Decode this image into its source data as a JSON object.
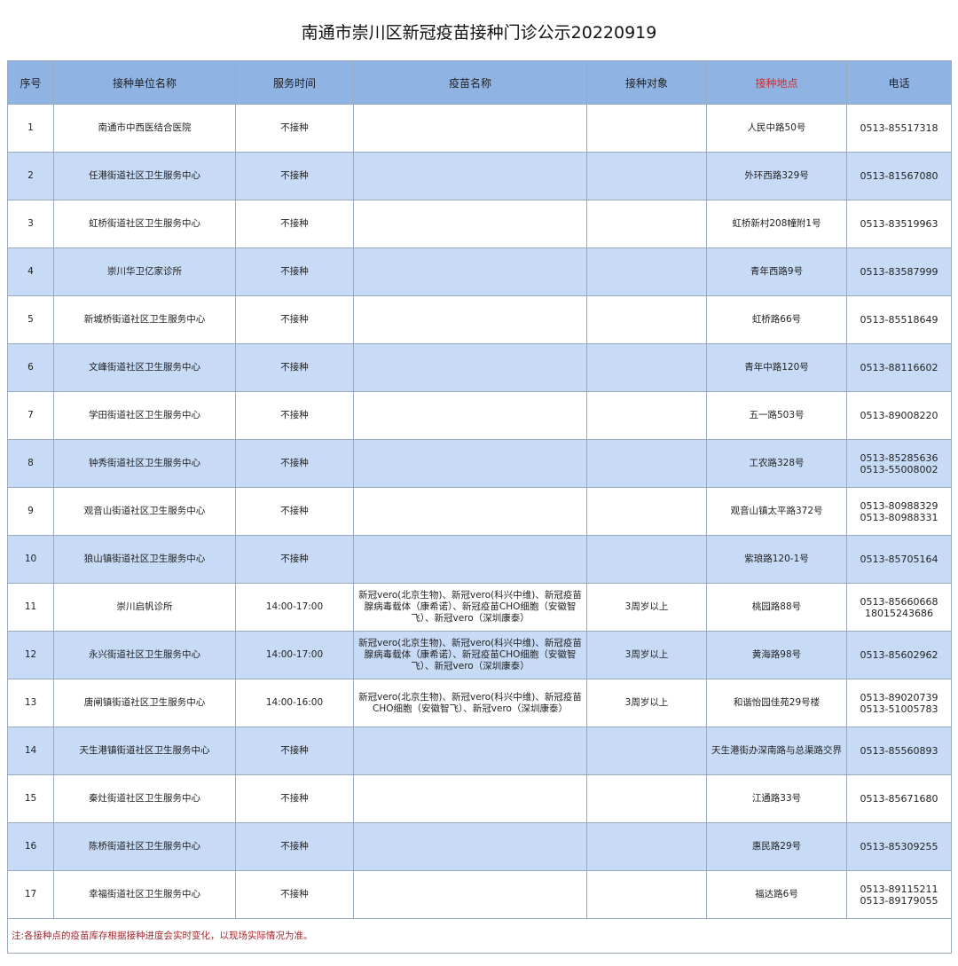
{
  "title": "南通市崇川区新冠疫苗接种门诊公示20220919",
  "headers": [
    "序号",
    "接种单位名称",
    "服务时间",
    "疫苗名称",
    "接种对象",
    "接种地点",
    "电话"
  ],
  "colors": {
    "header_bg": "#8fb3e2",
    "alt_row_bg": "#c7daf6",
    "location_header": "#d42a2a",
    "note": "#a3262e"
  },
  "rows": [
    {
      "no": "1",
      "unit": "南通市中西医结合医院",
      "time": "不接种",
      "vaccine": "",
      "target": "",
      "location": "人民中路50号",
      "phone": "0513-85517318"
    },
    {
      "no": "2",
      "unit": "任港街道社区卫生服务中心",
      "time": "不接种",
      "vaccine": "",
      "target": "",
      "location": "外环西路329号",
      "phone": "0513-81567080"
    },
    {
      "no": "3",
      "unit": "虹桥街道社区卫生服务中心",
      "time": "不接种",
      "vaccine": "",
      "target": "",
      "location": "虹桥新村208幢附1号",
      "phone": "0513-83519963"
    },
    {
      "no": "4",
      "unit": "崇川华卫亿家诊所",
      "time": "不接种",
      "vaccine": "",
      "target": "",
      "location": "青年西路9号",
      "phone": "0513-83587999"
    },
    {
      "no": "5",
      "unit": "新城桥街道社区卫生服务中心",
      "time": "不接种",
      "vaccine": "",
      "target": "",
      "location": "虹桥路66号",
      "phone": "0513-85518649"
    },
    {
      "no": "6",
      "unit": "文峰街道社区卫生服务中心",
      "time": "不接种",
      "vaccine": "",
      "target": "",
      "location": "青年中路120号",
      "phone": "0513-88116602"
    },
    {
      "no": "7",
      "unit": "学田街道社区卫生服务中心",
      "time": "不接种",
      "vaccine": "",
      "target": "",
      "location": "五一路503号",
      "phone": "0513-89008220"
    },
    {
      "no": "8",
      "unit": "钟秀街道社区卫生服务中心",
      "time": "不接种",
      "vaccine": "",
      "target": "",
      "location": "工农路328号",
      "phone": "0513-85285636\n0513-55008002"
    },
    {
      "no": "9",
      "unit": "观音山街道社区卫生服务中心",
      "time": "不接种",
      "vaccine": "",
      "target": "",
      "location": "观音山镇太平路372号",
      "phone": "0513-80988329\n0513-80988331"
    },
    {
      "no": "10",
      "unit": "狼山镇街道社区卫生服务中心",
      "time": "不接种",
      "vaccine": "",
      "target": "",
      "location": "紫琅路120-1号",
      "phone": "0513-85705164"
    },
    {
      "no": "11",
      "unit": "崇川启帆诊所",
      "time": "14:00-17:00",
      "vaccine": "新冠vero(北京生物)、新冠vero(科兴中维)、新冠疫苗腺病毒载体（康希诺）、新冠疫苗CHO细胞（安徽智飞）、新冠vero（深圳康泰）",
      "target": "3周岁以上",
      "location": "桃园路88号",
      "phone": "0513-85660668\n18015243686"
    },
    {
      "no": "12",
      "unit": "永兴街道社区卫生服务中心",
      "time": "14:00-17:00",
      "vaccine": "新冠vero(北京生物)、新冠vero(科兴中维)、新冠疫苗腺病毒载体（康希诺）、新冠疫苗CHO细胞（安徽智飞）、新冠vero（深圳康泰）",
      "target": "3周岁以上",
      "location": "黄海路98号",
      "phone": "0513-85602962"
    },
    {
      "no": "13",
      "unit": "唐闸镇街道社区卫生服务中心",
      "time": "14:00-16:00",
      "vaccine": "新冠vero(北京生物)、新冠vero(科兴中维)、新冠疫苗CHO细胞（安徽智飞）、新冠vero（深圳康泰）",
      "target": "3周岁以上",
      "location": "和谐怡园佳苑29号楼",
      "phone": "0513-89020739\n0513-51005783"
    },
    {
      "no": "14",
      "unit": "天生港镇街道社区卫生服务中心",
      "time": "不接种",
      "vaccine": "",
      "target": "",
      "location": "天生港街办深南路与总渠路交界",
      "phone": "0513-85560893"
    },
    {
      "no": "15",
      "unit": "秦灶街道社区卫生服务中心",
      "time": "不接种",
      "vaccine": "",
      "target": "",
      "location": "江通路33号",
      "phone": "0513-85671680"
    },
    {
      "no": "16",
      "unit": "陈桥街道社区卫生服务中心",
      "time": "不接种",
      "vaccine": "",
      "target": "",
      "location": "惠民路29号",
      "phone": "0513-85309255"
    },
    {
      "no": "17",
      "unit": "幸福街道社区卫生服务中心",
      "time": "不接种",
      "vaccine": "",
      "target": "",
      "location": "福达路6号",
      "phone": "0513-89115211\n0513-89179055"
    }
  ],
  "note": "注:各接种点的疫苗库存根据接种进度会实时变化，以现场实际情况为准。"
}
